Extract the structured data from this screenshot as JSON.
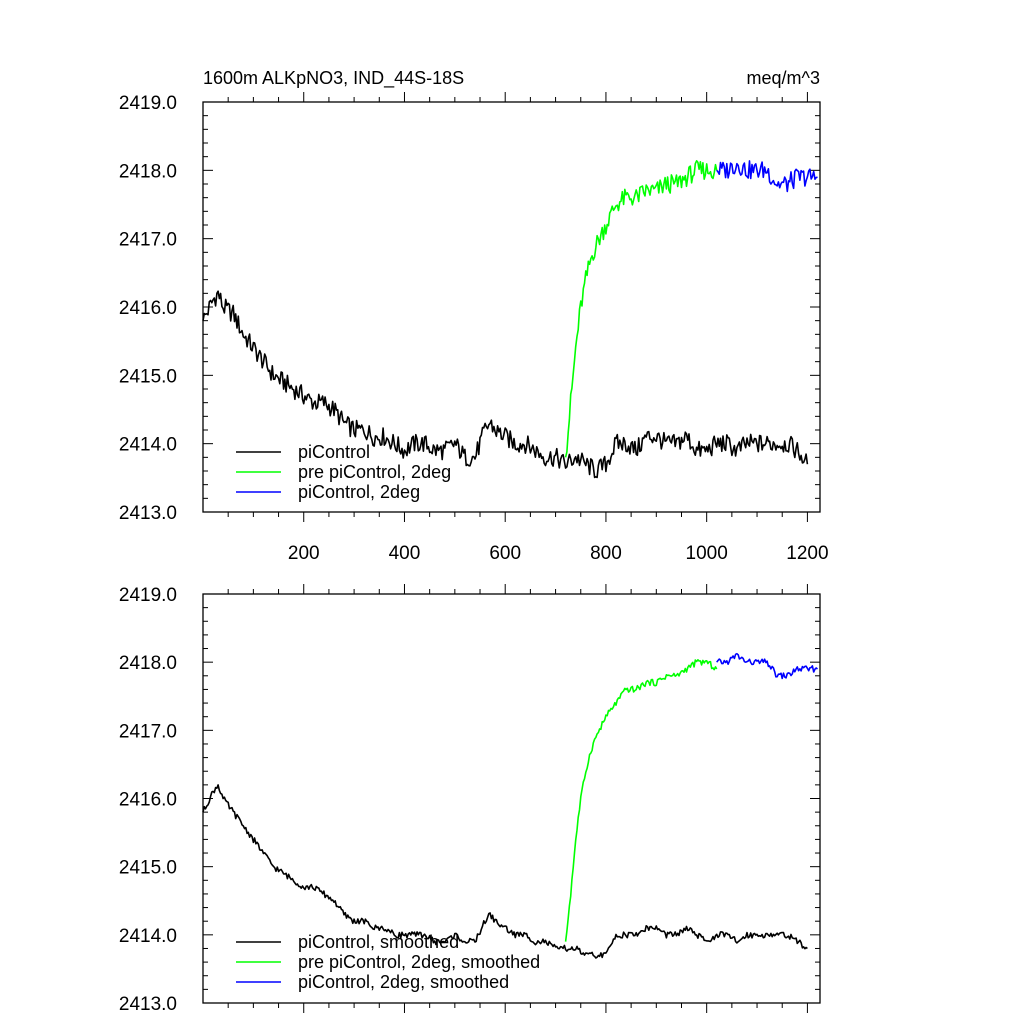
{
  "chart_data": [
    {
      "type": "line",
      "title": "1600m ALKpNO3, IND_44S-18S",
      "units": "meq/m^3",
      "xlim": [
        0,
        1225
      ],
      "ylim": [
        2413.0,
        2419.0
      ],
      "xticks": [
        200,
        400,
        600,
        800,
        1000,
        1200
      ],
      "yticks": [
        "2413.0",
        "2414.0",
        "2415.0",
        "2416.0",
        "2417.0",
        "2418.0",
        "2419.0"
      ],
      "show_xtick_labels": true,
      "legend_position": "bottom-left",
      "series": [
        {
          "name": "piControl",
          "color": "#000000",
          "x": [
            0,
            20,
            30,
            40,
            60,
            80,
            100,
            120,
            140,
            160,
            180,
            200,
            220,
            240,
            260,
            280,
            300,
            320,
            340,
            360,
            380,
            400,
            420,
            440,
            460,
            480,
            500,
            520,
            540,
            560,
            570,
            580,
            600,
            620,
            640,
            660,
            680,
            700,
            720,
            740,
            760,
            780,
            800,
            820,
            840,
            860,
            880,
            900,
            920,
            940,
            960,
            980,
            1000,
            1020,
            1040,
            1060,
            1080,
            1100,
            1120,
            1140,
            1160,
            1180,
            1200
          ],
          "y": [
            2415.8,
            2416.1,
            2416.2,
            2416.0,
            2415.9,
            2415.6,
            2415.4,
            2415.2,
            2415.0,
            2414.9,
            2414.8,
            2414.7,
            2414.6,
            2414.6,
            2414.5,
            2414.3,
            2414.2,
            2414.2,
            2414.1,
            2414.1,
            2414.0,
            2413.9,
            2414.0,
            2414.0,
            2413.9,
            2413.9,
            2414.0,
            2413.8,
            2413.8,
            2414.2,
            2414.3,
            2414.2,
            2414.1,
            2414.0,
            2414.0,
            2413.9,
            2413.8,
            2413.8,
            2413.7,
            2413.8,
            2413.7,
            2413.6,
            2413.7,
            2414.0,
            2414.0,
            2413.9,
            2414.1,
            2414.1,
            2414.0,
            2414.0,
            2414.1,
            2413.9,
            2413.9,
            2414.0,
            2414.0,
            2413.9,
            2414.0,
            2414.0,
            2414.0,
            2414.0,
            2414.0,
            2413.9,
            2413.7
          ]
        },
        {
          "name": "pre piControl, 2deg",
          "color": "#00ff00",
          "x": [
            720,
            730,
            740,
            750,
            760,
            770,
            780,
            800,
            820,
            840,
            860,
            880,
            900,
            920,
            940,
            960,
            980,
            1000,
            1020
          ],
          "y": [
            2413.8,
            2414.6,
            2415.4,
            2416.0,
            2416.4,
            2416.7,
            2416.9,
            2417.2,
            2417.5,
            2417.6,
            2417.6,
            2417.7,
            2417.7,
            2417.8,
            2417.8,
            2417.9,
            2418.0,
            2418.0,
            2418.0
          ]
        },
        {
          "name": "piControl, 2deg",
          "color": "#0000ff",
          "x": [
            1020,
            1040,
            1060,
            1080,
            1100,
            1120,
            1140,
            1160,
            1180,
            1200,
            1220
          ],
          "y": [
            2418.0,
            2418.0,
            2418.1,
            2418.0,
            2418.0,
            2418.0,
            2417.8,
            2417.8,
            2417.9,
            2417.9,
            2417.9
          ]
        }
      ]
    },
    {
      "type": "line",
      "xlim": [
        0,
        1225
      ],
      "ylim": [
        2413.0,
        2419.0
      ],
      "xticks": [
        200,
        400,
        600,
        800,
        1000,
        1200
      ],
      "yticks": [
        "2413.0",
        "2414.0",
        "2415.0",
        "2416.0",
        "2417.0",
        "2418.0",
        "2419.0"
      ],
      "show_xtick_labels": false,
      "legend_position": "bottom-left",
      "series": [
        {
          "name": "piControl, smoothed",
          "color": "#000000",
          "x": [
            0,
            20,
            30,
            40,
            60,
            80,
            100,
            120,
            140,
            160,
            180,
            200,
            220,
            240,
            260,
            280,
            300,
            320,
            340,
            360,
            380,
            400,
            420,
            440,
            460,
            480,
            500,
            520,
            540,
            560,
            570,
            580,
            600,
            620,
            640,
            660,
            680,
            700,
            720,
            740,
            760,
            780,
            800,
            820,
            840,
            860,
            880,
            900,
            920,
            940,
            960,
            980,
            1000,
            1020,
            1040,
            1060,
            1080,
            1100,
            1120,
            1140,
            1160,
            1180,
            1200
          ],
          "y": [
            2415.8,
            2416.1,
            2416.2,
            2416.0,
            2415.8,
            2415.6,
            2415.4,
            2415.2,
            2415.0,
            2414.9,
            2414.8,
            2414.7,
            2414.7,
            2414.6,
            2414.5,
            2414.3,
            2414.2,
            2414.2,
            2414.1,
            2414.1,
            2414.0,
            2414.0,
            2414.0,
            2414.0,
            2413.9,
            2413.9,
            2414.0,
            2413.9,
            2413.9,
            2414.2,
            2414.3,
            2414.2,
            2414.1,
            2414.0,
            2414.0,
            2413.9,
            2413.9,
            2413.8,
            2413.8,
            2413.8,
            2413.7,
            2413.7,
            2413.7,
            2414.0,
            2414.0,
            2414.0,
            2414.1,
            2414.1,
            2414.0,
            2414.0,
            2414.1,
            2414.0,
            2413.9,
            2414.0,
            2414.0,
            2413.9,
            2414.0,
            2414.0,
            2414.0,
            2414.0,
            2414.0,
            2413.9,
            2413.8
          ]
        },
        {
          "name": "pre piControl, 2deg, smoothed",
          "color": "#00ff00",
          "x": [
            720,
            730,
            740,
            750,
            760,
            770,
            780,
            800,
            820,
            840,
            860,
            880,
            900,
            920,
            940,
            960,
            980,
            1000,
            1020
          ],
          "y": [
            2413.9,
            2414.6,
            2415.4,
            2416.0,
            2416.4,
            2416.7,
            2416.9,
            2417.2,
            2417.4,
            2417.6,
            2417.6,
            2417.7,
            2417.7,
            2417.8,
            2417.8,
            2417.9,
            2418.0,
            2418.0,
            2417.9
          ]
        },
        {
          "name": "piControl, 2deg, smoothed",
          "color": "#0000ff",
          "x": [
            1020,
            1040,
            1060,
            1080,
            1100,
            1120,
            1140,
            1160,
            1180,
            1200,
            1220
          ],
          "y": [
            2418.0,
            2418.0,
            2418.1,
            2418.0,
            2418.0,
            2418.0,
            2417.8,
            2417.8,
            2417.9,
            2417.9,
            2417.9
          ]
        }
      ]
    }
  ]
}
